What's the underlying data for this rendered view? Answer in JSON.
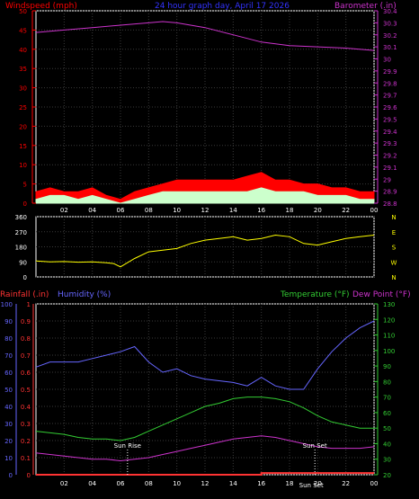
{
  "header": {
    "wind_label": "Windspeed (mph)",
    "title": "24 hour graph day, April 17 2026",
    "baro_label": "Barometer (.in)"
  },
  "lower_header": {
    "rain_label": "Rainfall (.in)",
    "humidity_label": "Humidity (%)",
    "temp_label": "Temperature (°F)",
    "dew_label": "Dew Point (°F)"
  },
  "colors": {
    "wind_gust": "#ff0000",
    "wind_avg": "#ccffcc",
    "barometer": "#cc33cc",
    "direction": "#ffff00",
    "rain": "#ff3333",
    "humidity": "#6666ff",
    "temperature": "#33cc33",
    "dew_point": "#cc33cc",
    "axis_left_top": "#ff0000",
    "axis_right_top": "#cc33cc",
    "axis_left_bottom": "#6666ff",
    "axis_right_bottom": "#33cc33",
    "grid": "#3a3a3a"
  },
  "chart_data": [
    {
      "type": "line",
      "panel": "wind-barometer",
      "x_ticks": [
        "02",
        "04",
        "06",
        "08",
        "10",
        "12",
        "14",
        "16",
        "18",
        "20",
        "22",
        "00"
      ],
      "y_left_ticks": [
        "0",
        "5",
        "10",
        "15",
        "20",
        "25",
        "30",
        "35",
        "40",
        "45",
        "50"
      ],
      "y_right_ticks": [
        "28.8",
        "28.9",
        "29",
        "29.1",
        "29.2",
        "29.3",
        "29.4",
        "29.5",
        "29.6",
        "29.7",
        "29.8",
        "29.9",
        "30",
        "30.1",
        "30.2",
        "30.3",
        "30.4"
      ],
      "ylim_left": [
        0,
        50
      ],
      "ylim_right": [
        28.8,
        30.4
      ],
      "xlim_hours": [
        0,
        24
      ],
      "series": [
        {
          "key": "barometer",
          "axis": "right",
          "x": [
            0,
            2,
            4,
            6,
            8,
            9,
            10,
            12,
            14,
            16,
            18,
            20,
            22,
            24
          ],
          "values": [
            30.22,
            30.24,
            30.26,
            30.28,
            30.3,
            30.31,
            30.3,
            30.26,
            30.2,
            30.14,
            30.11,
            30.1,
            30.09,
            30.07
          ]
        },
        {
          "key": "wind_gust",
          "axis": "left",
          "x": [
            0,
            1,
            2,
            3,
            4,
            5,
            6,
            7,
            8,
            9,
            10,
            11,
            12,
            13,
            14,
            15,
            16,
            17,
            18,
            19,
            20,
            21,
            22,
            23,
            24
          ],
          "values": [
            3,
            4,
            3,
            3,
            4,
            2,
            1,
            3,
            4,
            5,
            6,
            6,
            6,
            6,
            6,
            7,
            8,
            6,
            6,
            5,
            5,
            4,
            4,
            3,
            3
          ]
        },
        {
          "key": "wind_avg",
          "axis": "left",
          "x": [
            0,
            1,
            2,
            3,
            4,
            5,
            6,
            7,
            8,
            9,
            10,
            11,
            12,
            13,
            14,
            15,
            16,
            17,
            18,
            19,
            20,
            21,
            22,
            23,
            24
          ],
          "values": [
            1,
            2,
            2,
            1,
            2,
            1,
            0,
            1,
            2,
            3,
            3,
            3,
            3,
            3,
            3,
            3,
            4,
            3,
            3,
            3,
            2,
            2,
            2,
            1,
            1
          ]
        }
      ]
    },
    {
      "type": "scatter",
      "panel": "wind-direction",
      "y_left_ticks": [
        "0",
        "90",
        "180",
        "270",
        "360"
      ],
      "y_right_labels": [
        "N",
        "W",
        "S",
        "E",
        "N"
      ],
      "ylim": [
        0,
        360
      ],
      "series": [
        {
          "key": "direction",
          "x": [
            0,
            1,
            2,
            3,
            4,
            5,
            5.5,
            6,
            7,
            8,
            9,
            10,
            11,
            12,
            13,
            14,
            15,
            16,
            17,
            18,
            19,
            20,
            21,
            22,
            23,
            24
          ],
          "values": [
            95,
            90,
            92,
            88,
            90,
            85,
            80,
            60,
            110,
            150,
            160,
            170,
            200,
            220,
            230,
            240,
            220,
            230,
            250,
            240,
            200,
            190,
            210,
            230,
            240,
            250
          ]
        }
      ]
    },
    {
      "type": "line",
      "panel": "rain-humidity-temperature",
      "y_left_ticks": [
        "0",
        "10",
        "20",
        "30",
        "40",
        "50",
        "60",
        "70",
        "80",
        "90",
        "100"
      ],
      "y_left_rain_ticks": [
        "0",
        "0.1",
        "0.2",
        "0.3",
        "0.4",
        "0.5",
        "0.6",
        "0.7",
        "0.8",
        "0.9",
        "1"
      ],
      "y_right_ticks": [
        "20",
        "30",
        "40",
        "50",
        "60",
        "70",
        "80",
        "90",
        "100",
        "110",
        "120",
        "130"
      ],
      "ylim_left": [
        0,
        100
      ],
      "ylim_right": [
        20,
        130
      ],
      "annotations": {
        "sun_rise": "Sun Rise",
        "sun_set": "Sun Set",
        "sun_set_echo": "Sun Set"
      },
      "series": [
        {
          "key": "humidity",
          "axis": "left",
          "x": [
            0,
            1,
            2,
            3,
            4,
            5,
            6,
            7,
            8,
            9,
            10,
            11,
            12,
            13,
            14,
            15,
            16,
            17,
            18,
            19,
            20,
            21,
            22,
            23,
            24
          ],
          "values": [
            63,
            66,
            66,
            66,
            68,
            70,
            72,
            75,
            66,
            60,
            62,
            58,
            56,
            55,
            54,
            52,
            57,
            52,
            50,
            50,
            62,
            72,
            80,
            86,
            90
          ]
        },
        {
          "key": "temperature",
          "axis": "right",
          "x": [
            0,
            1,
            2,
            3,
            4,
            5,
            6,
            7,
            8,
            9,
            10,
            11,
            12,
            13,
            14,
            15,
            16,
            17,
            18,
            19,
            20,
            21,
            22,
            23,
            24
          ],
          "values": [
            48,
            47,
            46,
            44,
            43,
            43,
            42,
            44,
            48,
            52,
            56,
            60,
            64,
            66,
            69,
            70,
            70,
            69,
            67,
            63,
            58,
            54,
            52,
            50,
            50
          ]
        },
        {
          "key": "dew_point",
          "axis": "right",
          "x": [
            0,
            1,
            2,
            3,
            4,
            5,
            6,
            7,
            8,
            9,
            10,
            11,
            12,
            13,
            14,
            15,
            16,
            17,
            18,
            19,
            20,
            21,
            22,
            23,
            24
          ],
          "values": [
            34,
            33,
            32,
            31,
            30,
            30,
            29,
            30,
            31,
            33,
            35,
            37,
            39,
            41,
            43,
            44,
            45,
            44,
            42,
            40,
            38,
            37,
            37,
            37,
            38
          ]
        },
        {
          "key": "rain",
          "axis": "left",
          "x": [
            0,
            16,
            16,
            24
          ],
          "values": [
            0,
            0,
            0.01,
            0.01
          ]
        }
      ]
    }
  ]
}
